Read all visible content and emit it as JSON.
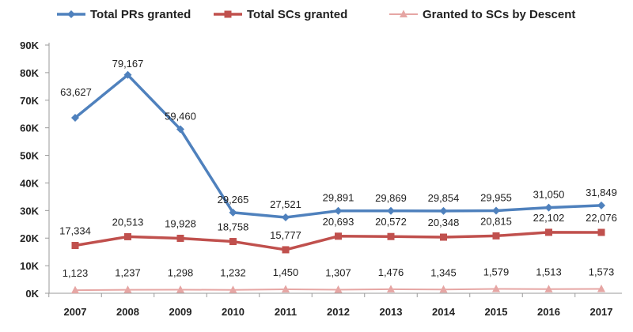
{
  "chart_data": {
    "type": "line",
    "categories": [
      "2007",
      "2008",
      "2009",
      "2010",
      "2011",
      "2012",
      "2013",
      "2014",
      "2015",
      "2016",
      "2017"
    ],
    "y_ticks": [
      "0K",
      "10K",
      "20K",
      "30K",
      "40K",
      "50K",
      "60K",
      "70K",
      "80K",
      "90K"
    ],
    "ylim": [
      0,
      90000
    ],
    "grid": false,
    "legend_position": "top",
    "series": [
      {
        "name": "Total PRs granted",
        "color": "#4f81bd",
        "marker": "diamond",
        "values": [
          63627,
          79167,
          59460,
          29265,
          27521,
          29891,
          29869,
          29854,
          29955,
          31050,
          31849
        ],
        "labels": [
          "63,627",
          "79,167",
          "59,460",
          "29,265",
          "27,521",
          "29,891",
          "29,869",
          "29,854",
          "29,955",
          "31,050",
          "31,849"
        ]
      },
      {
        "name": "Total SCs granted",
        "color": "#c0504d",
        "marker": "square",
        "values": [
          17334,
          20513,
          19928,
          18758,
          15777,
          20693,
          20572,
          20348,
          20815,
          22102,
          22076
        ],
        "labels": [
          "17,334",
          "20,513",
          "19,928",
          "18,758",
          "15,777",
          "20,693",
          "20,572",
          "20,348",
          "20,815",
          "22,102",
          "22,076"
        ]
      },
      {
        "name": "Granted to SCs by Descent",
        "color": "#e6a6a4",
        "marker": "triangle",
        "values": [
          1123,
          1237,
          1298,
          1232,
          1450,
          1307,
          1476,
          1345,
          1579,
          1513,
          1573
        ],
        "labels": [
          "1,123",
          "1,237",
          "1,298",
          "1,232",
          "1,450",
          "1,307",
          "1,476",
          "1,345",
          "1,579",
          "1,513",
          "1,573"
        ]
      }
    ]
  }
}
